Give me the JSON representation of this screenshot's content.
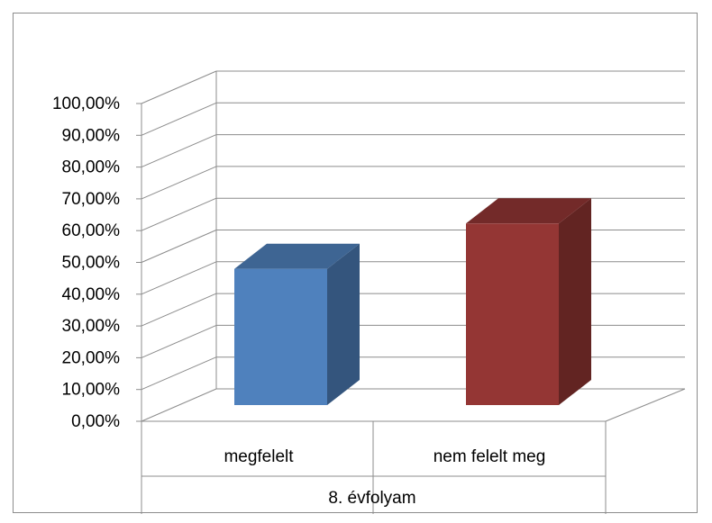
{
  "chart_data": {
    "type": "bar",
    "categories": [
      "megfelelt",
      "nem felelt meg"
    ],
    "group_label": "8. évfolyam",
    "values": [
      0.4286,
      0.5714
    ],
    "bar_colors": [
      "#4f81bd",
      "#943634"
    ],
    "ylim": [
      0,
      1
    ],
    "yticks": [
      "0,00%",
      "10,00%",
      "20,00%",
      "30,00%",
      "40,00%",
      "50,00%",
      "60,00%",
      "70,00%",
      "80,00%",
      "90,00%",
      "100,00%"
    ],
    "grid": true,
    "legend": "none",
    "style": "3d-column"
  }
}
